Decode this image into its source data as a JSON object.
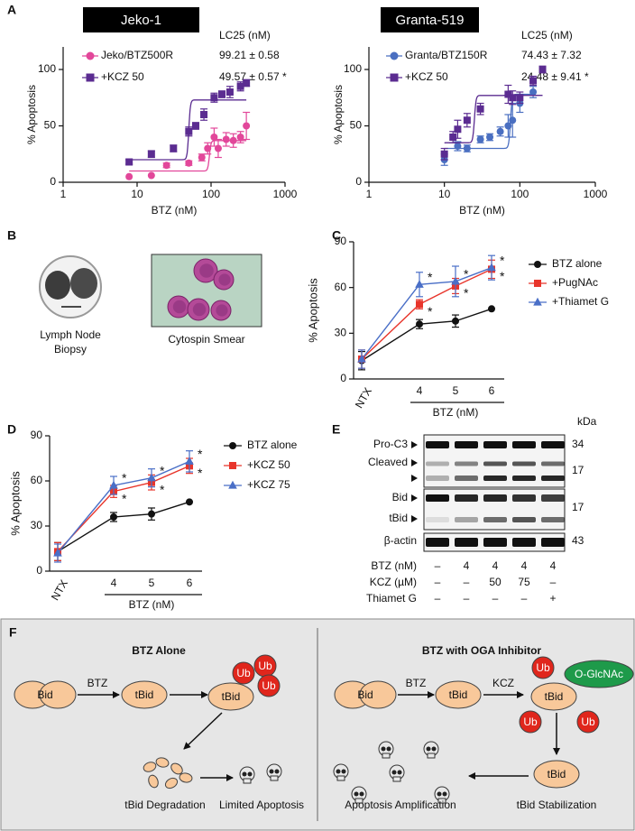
{
  "panel_labels": [
    "A",
    "B",
    "C",
    "D",
    "E",
    "F"
  ],
  "chart_data": [
    {
      "type": "scatter",
      "title": "Jeko-1",
      "xlabel": "BTZ (nM)",
      "ylabel": "% Apoptosis",
      "xscale": "log",
      "xlim": [
        1,
        1000
      ],
      "xticks": [
        1,
        10,
        100,
        1000
      ],
      "ylim": [
        0,
        120
      ],
      "yticks": [
        0,
        50,
        100
      ],
      "legend_header": "LC25 (nM)",
      "series": [
        {
          "name": "Jeko/BTZ500R",
          "lc25": "99.21 ± 0.58",
          "color": "#e2479a",
          "marker": "circle",
          "x": [
            7.8,
            15.6,
            25,
            50,
            75,
            90,
            110,
            125,
            160,
            200,
            250,
            300
          ],
          "values": [
            5,
            6,
            15,
            17,
            22,
            30,
            40,
            30,
            38,
            37,
            40,
            50
          ],
          "errors": [
            0,
            0,
            2,
            2,
            3,
            5,
            8,
            8,
            6,
            6,
            5,
            12
          ],
          "fit": {
            "bottom": 10,
            "top": 37,
            "x50": 95
          }
        },
        {
          "name": "+KCZ 50",
          "lc25": "49.57 ± 0.57 *",
          "color": "#5b2c91",
          "marker": "square",
          "x": [
            7.8,
            15.6,
            31,
            50,
            62,
            80,
            110,
            140,
            180,
            250,
            300
          ],
          "values": [
            18,
            25,
            30,
            45,
            50,
            60,
            75,
            78,
            80,
            85,
            88
          ],
          "errors": [
            2,
            3,
            3,
            4,
            3,
            5,
            4,
            3,
            5,
            4,
            3
          ],
          "fit": {
            "bottom": 20,
            "top": 73,
            "x50": 50
          }
        }
      ]
    },
    {
      "type": "scatter",
      "title": "Granta-519",
      "xlabel": "BTZ (nM)",
      "ylabel": "% Apoptosis",
      "xscale": "log",
      "xlim": [
        1,
        1000
      ],
      "xticks": [
        1,
        10,
        100,
        1000
      ],
      "ylim": [
        0,
        120
      ],
      "yticks": [
        0,
        50,
        100
      ],
      "legend_header": "LC25 (nM)",
      "series": [
        {
          "name": "Granta/BTZ150R",
          "lc25": "74.43 ± 7.32",
          "color": "#4a6fc1",
          "marker": "circle",
          "x": [
            10,
            15,
            20,
            30,
            40,
            55,
            70,
            80,
            100,
            150
          ],
          "values": [
            20,
            32,
            30,
            38,
            40,
            45,
            50,
            55,
            70,
            80
          ],
          "errors": [
            5,
            4,
            3,
            3,
            3,
            4,
            10,
            15,
            8,
            5
          ],
          "fit": {
            "bottom": 30,
            "top": 78,
            "x50": 75
          }
        },
        {
          "name": "+KCZ 50",
          "lc25": "24.48 ± 9.41 *",
          "color": "#5b2c91",
          "marker": "square",
          "x": [
            10,
            13,
            15,
            20,
            30,
            70,
            80,
            100,
            150,
            200
          ],
          "values": [
            25,
            40,
            47,
            55,
            65,
            78,
            75,
            75,
            90,
            100
          ],
          "errors": [
            5,
            5,
            8,
            6,
            5,
            8,
            6,
            5,
            4,
            3
          ],
          "fit": {
            "bottom": 35,
            "top": 77,
            "x50": 25
          }
        }
      ]
    },
    {
      "type": "line",
      "ylabel": "% Apoptosis",
      "xlabel": "BTZ (nM)",
      "categories": [
        "NTX",
        4,
        5,
        6
      ],
      "ylim": [
        0,
        90
      ],
      "yticks": [
        0,
        30,
        60,
        90
      ],
      "series": [
        {
          "name": "BTZ alone",
          "color": "#111111",
          "marker": "circle",
          "values": [
            12,
            36,
            38,
            46
          ],
          "errors": [
            6,
            3,
            4,
            0
          ],
          "significance": [
            null,
            null,
            null,
            null
          ]
        },
        {
          "name": "+PugNAc",
          "color": "#e8352b",
          "marker": "square",
          "values": [
            13,
            49,
            61,
            72
          ],
          "errors": [
            6,
            3,
            5,
            6
          ],
          "significance": [
            null,
            "*",
            "*",
            "*"
          ]
        },
        {
          "name": "+Thiamet G",
          "color": "#4a6fc7",
          "marker": "triangle",
          "values": [
            13,
            62,
            64,
            73
          ],
          "errors": [
            6,
            8,
            10,
            8
          ],
          "significance": [
            null,
            "*",
            "*",
            "*"
          ]
        }
      ]
    },
    {
      "type": "line",
      "ylabel": "% Apoptosis",
      "xlabel": "BTZ (nM)",
      "categories": [
        "NTX",
        4,
        5,
        6
      ],
      "ylim": [
        0,
        90
      ],
      "yticks": [
        0,
        30,
        60,
        90
      ],
      "series": [
        {
          "name": "BTZ alone",
          "color": "#111111",
          "marker": "circle",
          "values": [
            13,
            36,
            38,
            46
          ],
          "errors": [
            6,
            3,
            4,
            0
          ],
          "significance": [
            null,
            null,
            null,
            null
          ]
        },
        {
          "name": "+KCZ 50",
          "color": "#e8352b",
          "marker": "square",
          "values": [
            13,
            53,
            59,
            70
          ],
          "errors": [
            6,
            4,
            5,
            5
          ],
          "significance": [
            null,
            "*",
            "*",
            "*"
          ]
        },
        {
          "name": "+KCZ 75",
          "color": "#4a6fc7",
          "marker": "triangle",
          "values": [
            12,
            57,
            62,
            73
          ],
          "errors": [
            6,
            6,
            6,
            7
          ],
          "significance": [
            null,
            "*",
            "*",
            "*"
          ]
        }
      ]
    }
  ],
  "panel_b": {
    "images": [
      {
        "caption": [
          "Lymph Node",
          "Biopsy"
        ]
      },
      {
        "caption": [
          "Cytospin Smear"
        ]
      }
    ]
  },
  "panel_e": {
    "unit_header": "kDa",
    "rows": [
      {
        "label": "Pro-C3",
        "kda": 34
      },
      {
        "label": "Cleaved",
        "kda": 17
      },
      {
        "label": "Bid",
        "kda": 17
      },
      {
        "label": "tBid"
      },
      {
        "label": "β-actin",
        "kda": 43
      }
    ],
    "conditions": [
      {
        "label": "BTZ (nM)",
        "values": [
          "–",
          4,
          4,
          4,
          4
        ]
      },
      {
        "label": "KCZ (µM)",
        "values": [
          "–",
          "–",
          50,
          75,
          "–"
        ]
      },
      {
        "label": "Thiamet G",
        "values": [
          "–",
          "–",
          "–",
          "–",
          "+"
        ]
      }
    ]
  },
  "panel_f": {
    "left": {
      "title": "BTZ Alone",
      "bid": "Bid",
      "step1": "BTZ",
      "tbid": "tBid",
      "tbid_ub": "tBid",
      "ub": [
        "Ub",
        "Ub",
        "Ub"
      ],
      "degradation": "tBid Degradation",
      "outcome": "Limited Apoptosis"
    },
    "right": {
      "title": "BTZ with OGA Inhibitor",
      "bid": "Bid",
      "step1": "BTZ",
      "tbid": "tBid",
      "step2": "KCZ",
      "tbid_mod": "tBid",
      "ub": [
        "Ub",
        "Ub",
        "Ub"
      ],
      "glcnac": "O-GlcNAc",
      "tbid_stable": "tBid",
      "stabilization": "tBid Stabilization",
      "outcome": "Apoptosis Amplification"
    }
  }
}
